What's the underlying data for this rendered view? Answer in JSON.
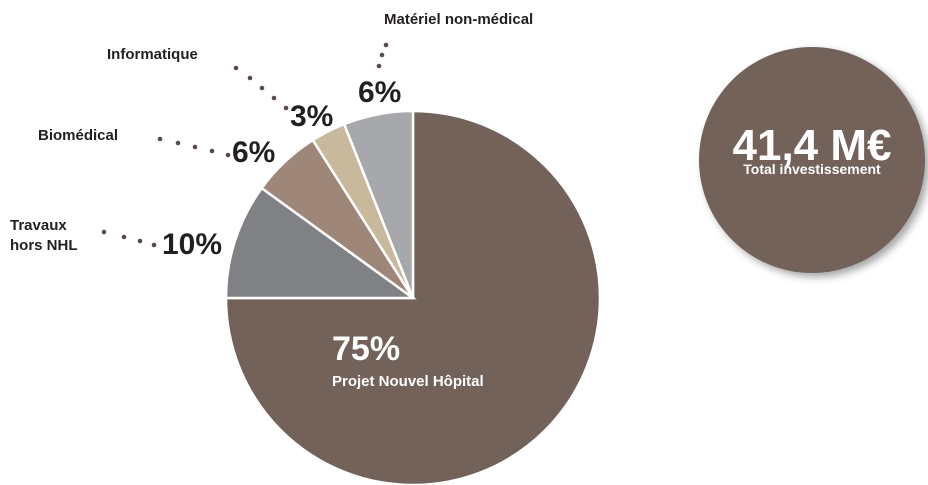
{
  "chart_data": {
    "type": "pie",
    "categories": [
      "Projet Nouvel Hôpital",
      "Travaux hors NHL",
      "Biomédical",
      "Informatique",
      "Matériel non-médical"
    ],
    "values": [
      75,
      10,
      6,
      3,
      6
    ],
    "value_labels": [
      "75%",
      "10%",
      "6%",
      "3%",
      "6%"
    ],
    "colors": [
      "#72625a",
      "#808184",
      "#9e8678",
      "#c9b99c",
      "#a7a8ac"
    ],
    "total": {
      "value": "41,4 M€",
      "label": "Total investissement",
      "color": "#72625a"
    }
  }
}
